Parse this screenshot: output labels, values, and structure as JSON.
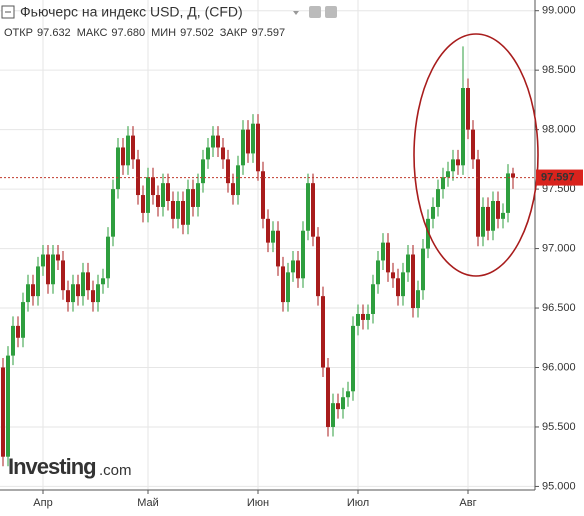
{
  "chart_data": {
    "type": "candlestick",
    "title": "Фьючерс на индекс USD, Д, (CFD)",
    "stats": [
      {
        "label": "ОТКР",
        "value": "97.632"
      },
      {
        "label": "МАКС",
        "value": "97.680"
      },
      {
        "label": "МИН",
        "value": "97.502"
      },
      {
        "label": "ЗАКР",
        "value": "97.597"
      }
    ],
    "logo": {
      "brand": "Investing",
      "suffix": ".com"
    },
    "up_color": "#2e9e3e",
    "down_color": "#a81c1c",
    "grid": true,
    "categories": [
      null,
      null,
      null,
      null,
      null,
      null,
      null,
      null,
      "Апр",
      null,
      null,
      null,
      null,
      null,
      null,
      null,
      null,
      null,
      null,
      null,
      null,
      null,
      null,
      null,
      null,
      null,
      null,
      null,
      null,
      "Май",
      null,
      null,
      null,
      null,
      null,
      null,
      null,
      null,
      null,
      null,
      null,
      null,
      null,
      null,
      null,
      null,
      null,
      null,
      null,
      null,
      null,
      "Июн",
      null,
      null,
      null,
      null,
      null,
      null,
      null,
      null,
      null,
      null,
      null,
      null,
      null,
      null,
      null,
      null,
      null,
      null,
      null,
      "Июл",
      null,
      null,
      null,
      null,
      null,
      null,
      null,
      null,
      null,
      null,
      null,
      null,
      null,
      null,
      null,
      null,
      null,
      null,
      null,
      null,
      null,
      "Авг",
      null,
      null,
      null,
      null,
      null,
      null,
      null,
      null,
      null
    ],
    "open": [
      96.0,
      95.25,
      96.1,
      96.35,
      96.25,
      96.55,
      96.7,
      96.6,
      96.85,
      96.95,
      96.7,
      96.95,
      96.9,
      96.65,
      96.55,
      96.7,
      96.6,
      96.8,
      96.65,
      96.55,
      96.7,
      96.75,
      97.1,
      97.5,
      97.85,
      97.7,
      97.95,
      97.75,
      97.45,
      97.3,
      97.6,
      97.45,
      97.35,
      97.55,
      97.4,
      97.25,
      97.4,
      97.2,
      97.5,
      97.35,
      97.55,
      97.75,
      97.85,
      97.95,
      97.85,
      97.75,
      97.55,
      97.45,
      97.7,
      98.0,
      97.8,
      98.05,
      97.65,
      97.25,
      97.05,
      97.15,
      96.85,
      96.55,
      96.8,
      96.9,
      96.75,
      97.15,
      97.55,
      97.1,
      96.6,
      96.0,
      95.5,
      95.7,
      95.65,
      95.75,
      95.8,
      96.35,
      96.45,
      96.4,
      96.45,
      96.7,
      96.9,
      97.05,
      96.8,
      96.75,
      96.6,
      96.8,
      96.95,
      96.5,
      96.65,
      97.0,
      97.25,
      97.35,
      97.5,
      97.6,
      97.65,
      97.75,
      97.7,
      98.35,
      98.0,
      97.75,
      97.1,
      97.35,
      97.15,
      97.4,
      97.25,
      97.3,
      97.632
    ],
    "high": [
      96.08,
      96.18,
      96.43,
      96.43,
      96.63,
      96.78,
      96.78,
      96.93,
      97.03,
      97.03,
      97.03,
      97.03,
      96.98,
      96.73,
      96.78,
      96.78,
      96.88,
      96.88,
      96.73,
      96.78,
      96.83,
      97.18,
      97.58,
      97.93,
      97.93,
      98.03,
      98.03,
      97.83,
      97.53,
      97.68,
      97.68,
      97.53,
      97.63,
      97.63,
      97.48,
      97.48,
      97.48,
      97.58,
      97.58,
      97.63,
      97.83,
      97.93,
      98.03,
      98.03,
      97.93,
      97.83,
      97.63,
      97.78,
      98.08,
      98.08,
      98.13,
      98.13,
      97.73,
      97.33,
      97.23,
      97.23,
      96.93,
      96.88,
      96.98,
      96.98,
      97.23,
      97.63,
      97.63,
      97.18,
      96.68,
      96.08,
      95.78,
      95.78,
      95.83,
      95.88,
      96.43,
      96.53,
      96.53,
      96.53,
      96.78,
      96.98,
      97.13,
      97.13,
      96.88,
      96.83,
      96.88,
      97.03,
      97.03,
      96.73,
      97.08,
      97.33,
      97.43,
      97.58,
      97.68,
      97.73,
      97.83,
      97.83,
      98.7,
      98.43,
      98.08,
      97.83,
      97.43,
      97.43,
      97.48,
      97.48,
      97.38,
      97.71,
      97.68
    ],
    "low": [
      95.17,
      95.17,
      96.02,
      96.17,
      96.17,
      96.47,
      96.52,
      96.52,
      96.77,
      96.62,
      96.62,
      96.82,
      96.57,
      96.47,
      96.47,
      96.52,
      96.52,
      96.57,
      96.47,
      96.47,
      96.62,
      96.67,
      97.02,
      97.42,
      97.62,
      97.62,
      97.67,
      97.37,
      97.22,
      97.22,
      97.37,
      97.27,
      97.27,
      97.32,
      97.17,
      97.17,
      97.12,
      97.12,
      97.27,
      97.27,
      97.47,
      97.67,
      97.77,
      97.77,
      97.67,
      97.47,
      97.37,
      97.37,
      97.62,
      97.72,
      97.72,
      97.57,
      97.17,
      96.97,
      96.97,
      96.77,
      96.47,
      96.47,
      96.72,
      96.67,
      96.67,
      97.07,
      97.02,
      96.52,
      95.92,
      95.42,
      95.42,
      95.57,
      95.57,
      95.67,
      95.72,
      96.27,
      96.32,
      96.32,
      96.37,
      96.62,
      96.82,
      96.72,
      96.67,
      96.52,
      96.52,
      96.72,
      96.42,
      96.42,
      96.57,
      96.92,
      97.17,
      97.27,
      97.42,
      97.52,
      97.57,
      97.62,
      97.62,
      97.92,
      97.67,
      97.02,
      97.02,
      97.07,
      97.07,
      97.17,
      97.17,
      97.22,
      97.502
    ],
    "close": [
      95.25,
      96.1,
      96.35,
      96.25,
      96.55,
      96.7,
      96.6,
      96.85,
      96.95,
      96.7,
      96.95,
      96.9,
      96.65,
      96.55,
      96.7,
      96.6,
      96.8,
      96.65,
      96.55,
      96.7,
      96.75,
      97.1,
      97.5,
      97.85,
      97.7,
      97.95,
      97.75,
      97.45,
      97.3,
      97.6,
      97.45,
      97.35,
      97.55,
      97.4,
      97.25,
      97.4,
      97.2,
      97.5,
      97.35,
      97.55,
      97.75,
      97.85,
      97.95,
      97.85,
      97.75,
      97.55,
      97.45,
      97.7,
      98.0,
      97.8,
      98.05,
      97.65,
      97.25,
      97.05,
      97.15,
      96.85,
      96.55,
      96.8,
      96.9,
      96.75,
      97.15,
      97.55,
      97.1,
      96.6,
      96.0,
      95.5,
      95.7,
      95.65,
      95.75,
      95.8,
      96.35,
      96.45,
      96.4,
      96.45,
      96.7,
      96.9,
      97.05,
      96.8,
      96.75,
      96.6,
      96.8,
      96.95,
      96.5,
      96.65,
      97.0,
      97.25,
      97.35,
      97.5,
      97.6,
      97.65,
      97.75,
      97.7,
      98.35,
      98.0,
      97.75,
      97.1,
      97.35,
      97.15,
      97.4,
      97.25,
      97.3,
      97.632,
      97.597
    ],
    "ylim": [
      94.97,
      99.09
    ],
    "yticks": [
      {
        "value": 95.0,
        "label": "95.000"
      },
      {
        "value": 95.5,
        "label": "95.500"
      },
      {
        "value": 96.0,
        "label": "96.000"
      },
      {
        "value": 96.5,
        "label": "96.500"
      },
      {
        "value": 97.0,
        "label": "97.000"
      },
      {
        "value": 97.5,
        "label": "97.500"
      },
      {
        "value": 98.0,
        "label": "98.000"
      },
      {
        "value": 98.5,
        "label": "98.500"
      },
      {
        "value": 99.0,
        "label": "99.000"
      }
    ]
  }
}
